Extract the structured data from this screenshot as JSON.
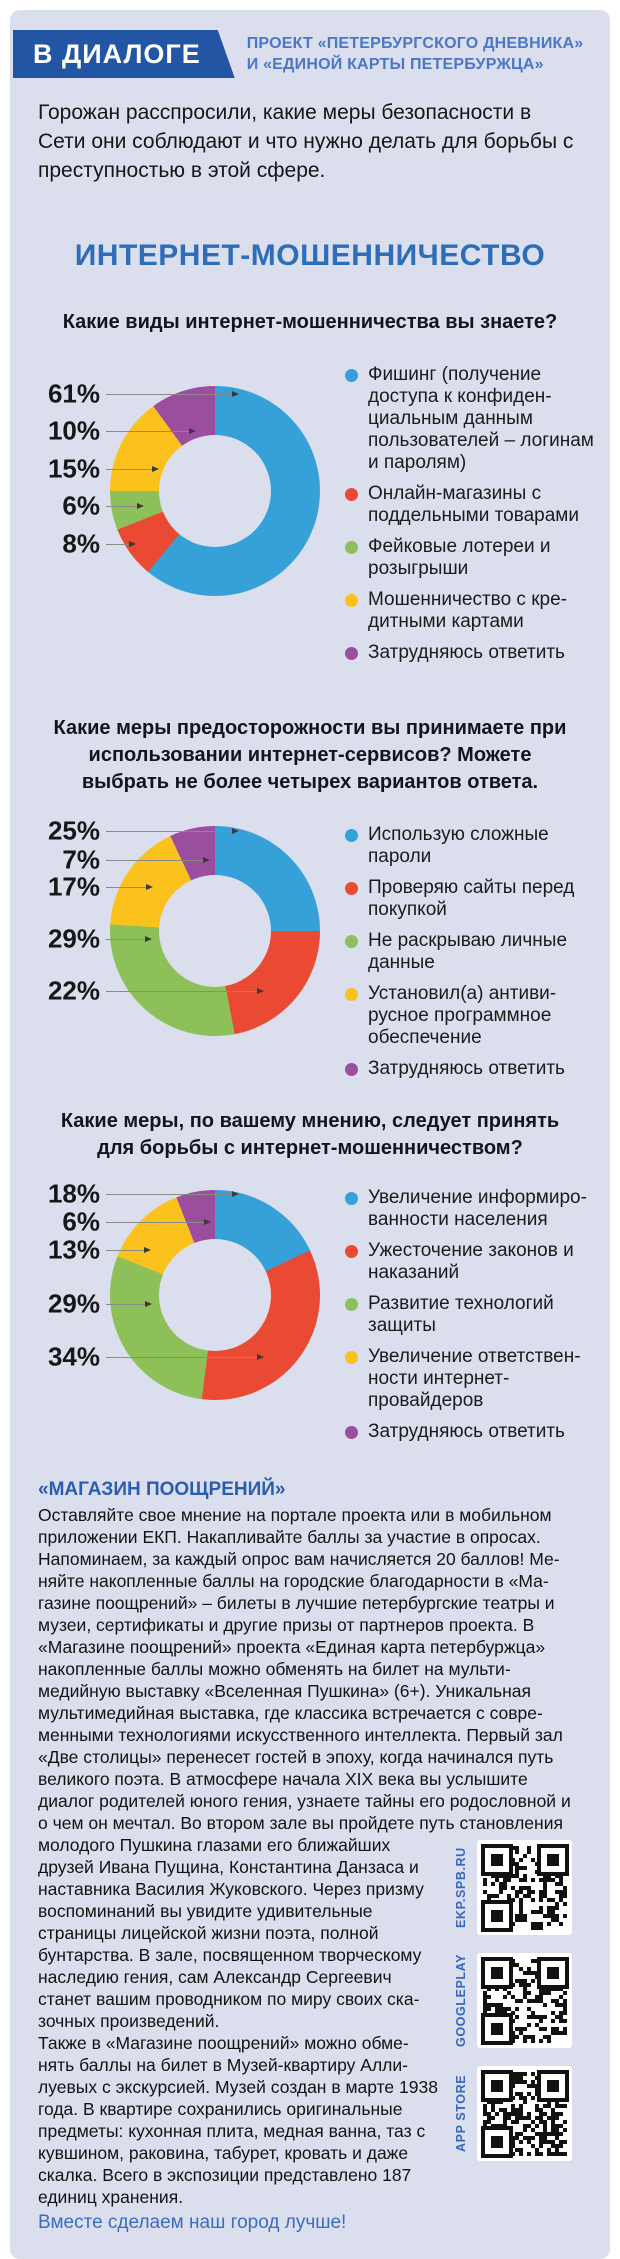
{
  "header": {
    "brand": "В ДИАЛОГЕ",
    "project_line1": "ПРОЕКТ «ПЕТЕРБУРГСКОГО ДНЕВНИКА»",
    "project_line2": "И «ЕДИНОЙ КАРТЫ ПЕТЕРБУРЖЦА»"
  },
  "intro": "Горожан расспросили, какие меры безопасности в Сети они соблюдают и что нужно делать для борьбы с преступностью в этой сфере.",
  "title": "ИНТЕРНЕТ-МОШЕННИЧЕСТВО",
  "colors": {
    "panel_background": "#dbdeed",
    "banner_blue": "#2355a5",
    "title_blue": "#2e6db8",
    "link_blue": "#3a6cc0",
    "slice_blue": "#36a1d9",
    "slice_red": "#ea4a34",
    "slice_green": "#8ec05a",
    "slice_yellow": "#fbc21d",
    "slice_purple": "#9b4e9d"
  },
  "chart_data": [
    {
      "type": "pie",
      "question": "Какие виды интернет-мошенничества вы знаете?",
      "legend_position": "right",
      "series": [
        {
          "label": "Фишинг (получение доступа к конфиден­циальным данным пользователей – логи­нам и паролям)",
          "value": 61,
          "color": "#36a1d9"
        },
        {
          "label": "Онлайн-магазины с поддельными това­рами",
          "value": 8,
          "color": "#ea4a34"
        },
        {
          "label": "Фейковые лотереи и розыгрыши",
          "value": 6,
          "color": "#8ec05a"
        },
        {
          "label": "Мошенничество с кре­дитными картами",
          "value": 15,
          "color": "#fbc21d"
        },
        {
          "label": "Затрудняюсь ответить",
          "value": 10,
          "color": "#9b4e9d"
        }
      ],
      "callout_order": [
        0,
        4,
        3,
        2,
        1
      ]
    },
    {
      "type": "pie",
      "question": "Какие меры предосторожности вы принимаете при использовании интернет-сервисов? Можете выбрать не более четырех вариантов ответа.",
      "legend_position": "right",
      "series": [
        {
          "label": "Использую сложные пароли",
          "value": 25,
          "color": "#36a1d9"
        },
        {
          "label": "Проверяю сайты перед покупкой",
          "value": 22,
          "color": "#ea4a34"
        },
        {
          "label": "Не раскрываю личные данные",
          "value": 29,
          "color": "#8ec05a"
        },
        {
          "label": "Установил(а) антиви­русное программное обеспечение",
          "value": 17,
          "color": "#fbc21d"
        },
        {
          "label": "Затрудняюсь ответить",
          "value": 7,
          "color": "#9b4e9d"
        }
      ],
      "callout_order": [
        0,
        4,
        3,
        2,
        1
      ]
    },
    {
      "type": "pie",
      "question": "Какие меры, по вашему мнению, следует принять для борьбы с интернет-мошенничеством?",
      "legend_position": "right",
      "series": [
        {
          "label": "Увеличение информиро­ванности населения",
          "value": 18,
          "color": "#36a1d9"
        },
        {
          "label": "Ужесточение законов и наказаний",
          "value": 34,
          "color": "#ea4a34"
        },
        {
          "label": "Развитие технологий защиты",
          "value": 29,
          "color": "#8ec05a"
        },
        {
          "label": "Увеличение ответствен­ности интернет-провайдеров",
          "value": 13,
          "color": "#fbc21d"
        },
        {
          "label": "Затрудняюсь ответить",
          "value": 6,
          "color": "#9b4e9d"
        }
      ],
      "callout_order": [
        0,
        4,
        3,
        2,
        1
      ]
    }
  ],
  "shop": {
    "heading": "«МАГАЗИН ПООЩРЕНИЙ»",
    "text_intro": "Оставляйте свое мнение на портале проекта или в мобильном приложении ЕКП. Накапливайте баллы за участие в опросах. Напоминаем, за каждый опрос вам начисляется 20 баллов! Ме­няйте накопленные баллы на городские благодарности в «Ма­газине поощрений» – билеты в лучшие петербургские театры и музеи, сертификаты и другие призы от партнеров проекта. В «Магазине поощрений» проекта «Единая карта петербуржца» накопленные баллы можно обменять на билет на мульти­медийную выставку «Вселенная Пушкина» (6+). Уникальная мультимедийная выставка, где классика встречается с совре­менными технологиями искусственного интеллекта. Первый зал «Две столицы» перенесет гостей в эпоху, когда начинался путь великого поэта. В атмосфере начала XIX века вы услышите диалог родителей юного гения, узнаете тайны его родословной и о чем он мечтал. Во втором зале вы пройдете путь становле­ния молодого Пушкина глазами его ближайших",
    "text_wrap": "друзей Ивана Пущина, Константина Данзаса и наставника Василия Жуковского. Через призму воспоминаний вы увидите удивитель­ные страницы лицейской жизни поэта, полной бунтарства. В зале, посвященном творческому наследию гения, сам Александр Сергеевич станет вашим проводником по миру своих ска­зочных произведений.",
    "text_also": "Также в «Магазине поощрений» можно обме­нять баллы на билет в Музей-квартиру Алли­луевых с экскурсией. Музей создан в марте 1938 года. В квартире сохранились оригинальные предметы: кухонная плита, медная ванна, таз с кувшином, раковина, табурет, кровать и даже скалка. Всего в экспозиции представлено 187 единиц хранения."
  },
  "qr": [
    {
      "label": "EKP.SPB.RU"
    },
    {
      "label": "GOOGLEPLAY"
    },
    {
      "label": "APP STORE"
    }
  ],
  "footer": "Вместе сделаем наш город лучше!"
}
